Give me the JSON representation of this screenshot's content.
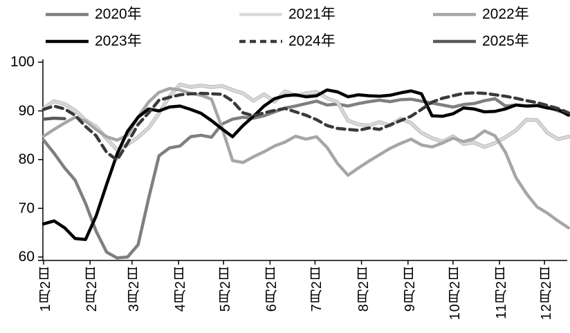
{
  "chart_data": {
    "type": "line",
    "title": "",
    "xlabel": "",
    "ylabel": "",
    "grid": false,
    "legend_position": "top",
    "y_ticks": [
      "100",
      "90",
      "80",
      "70",
      "60"
    ],
    "y_tick_values": [
      100,
      90,
      80,
      70,
      60
    ],
    "ylim": [
      60,
      100
    ],
    "x_ticks": [
      {
        "label": "1月2日",
        "day": 2
      },
      {
        "label": "2月2日",
        "day": 33
      },
      {
        "label": "3月2日",
        "day": 61
      },
      {
        "label": "4月2日",
        "day": 92
      },
      {
        "label": "5月2日",
        "day": 122
      },
      {
        "label": "6月2日",
        "day": 153
      },
      {
        "label": "7月2日",
        "day": 183
      },
      {
        "label": "8月2日",
        "day": 214
      },
      {
        "label": "9月2日",
        "day": 245
      },
      {
        "label": "10月2日",
        "day": 275
      },
      {
        "label": "11月2日",
        "day": 306
      },
      {
        "label": "12月2日",
        "day": 336
      }
    ],
    "x_days_weekly": [
      2,
      9,
      16,
      23,
      30,
      37,
      44,
      51,
      58,
      65,
      72,
      79,
      86,
      93,
      100,
      107,
      114,
      121,
      128,
      135,
      142,
      149,
      156,
      163,
      170,
      177,
      184,
      191,
      198,
      205,
      212,
      219,
      226,
      233,
      240,
      247,
      254,
      261,
      268,
      275,
      282,
      289,
      296,
      303,
      310,
      317,
      324,
      331,
      338,
      345,
      352
    ],
    "series": [
      {
        "name": "2020年",
        "color": "#7f7f7f",
        "dash": false,
        "values": [
          84.0,
          81.3,
          78.3,
          75.8,
          71.0,
          65.3,
          61.0,
          59.8,
          60.0,
          62.5,
          72.0,
          80.8,
          82.4,
          82.8,
          84.7,
          85.0,
          84.6,
          87.3,
          88.3,
          88.7,
          88.5,
          89.0,
          89.8,
          90.6,
          91.0,
          91.5,
          92.0,
          91.2,
          91.4,
          91.0,
          91.5,
          91.9,
          92.2,
          91.9,
          92.3,
          92.4,
          92.0,
          91.6,
          91.2,
          90.8,
          91.3,
          91.5,
          92.1,
          92.5,
          91.0,
          91.2,
          91.0,
          91.1,
          90.8,
          90.0,
          89.4
        ]
      },
      {
        "name": "2021年",
        "color": "#d9d9d9",
        "edge_color": "#bdbdbd",
        "dash": false,
        "values": [
          90.5,
          92.0,
          91.4,
          90.1,
          88.1,
          86.8,
          84.3,
          82.0,
          83.1,
          84.6,
          86.5,
          89.5,
          93.0,
          95.4,
          94.9,
          95.2,
          94.9,
          95.1,
          94.3,
          93.6,
          92.1,
          93.4,
          91.9,
          94.0,
          93.1,
          93.6,
          93.9,
          92.6,
          91.8,
          88.0,
          87.2,
          87.0,
          87.7,
          87.0,
          88.4,
          87.5,
          85.5,
          84.4,
          83.7,
          84.8,
          83.2,
          83.5,
          82.6,
          83.4,
          84.6,
          86.0,
          88.2,
          88.1,
          85.5,
          84.2,
          84.7
        ]
      },
      {
        "name": "2022年",
        "color": "#a6a6a6",
        "dash": false,
        "values": [
          84.8,
          86.2,
          87.5,
          88.7,
          87.9,
          86.2,
          84.7,
          84.0,
          85.0,
          88.7,
          91.8,
          93.8,
          94.6,
          94.3,
          93.6,
          93.2,
          92.4,
          86.5,
          79.8,
          79.4,
          80.6,
          81.6,
          82.8,
          83.6,
          84.8,
          84.2,
          84.7,
          82.5,
          79.2,
          76.8,
          78.3,
          79.7,
          81.0,
          82.3,
          83.3,
          84.2,
          83.0,
          82.6,
          83.4,
          84.4,
          83.7,
          84.3,
          85.9,
          84.9,
          81.5,
          76.3,
          73.0,
          70.3,
          69.0,
          67.4,
          66.0
        ]
      },
      {
        "name": "2023年",
        "color": "#000000",
        "dash": false,
        "values": [
          66.8,
          67.4,
          66.0,
          63.8,
          63.6,
          68.4,
          74.9,
          81.1,
          85.8,
          88.7,
          90.4,
          90.0,
          90.8,
          91.0,
          90.3,
          89.5,
          88.0,
          86.3,
          84.7,
          87.0,
          88.9,
          91.0,
          92.5,
          93.1,
          93.3,
          92.9,
          93.1,
          94.3,
          93.9,
          92.9,
          93.3,
          93.1,
          93.0,
          93.2,
          93.7,
          94.1,
          93.5,
          89.0,
          88.9,
          89.4,
          90.6,
          90.4,
          89.8,
          89.9,
          90.4,
          91.2,
          91.0,
          91.1,
          90.6,
          90.3,
          89.1
        ]
      },
      {
        "name": "2024年",
        "color": "#3a3a3a",
        "dash": true,
        "values": [
          90.3,
          91.0,
          90.4,
          89.1,
          86.8,
          84.9,
          81.5,
          79.9,
          83.4,
          87.2,
          89.6,
          92.2,
          92.8,
          93.3,
          93.5,
          93.6,
          93.5,
          93.4,
          92.0,
          89.6,
          89.0,
          89.6,
          90.1,
          90.5,
          89.8,
          89.1,
          88.2,
          87.0,
          86.4,
          86.2,
          86.0,
          86.5,
          86.2,
          87.1,
          88.0,
          88.9,
          90.3,
          91.8,
          92.6,
          93.1,
          93.6,
          93.7,
          93.6,
          93.3,
          93.0,
          92.6,
          92.1,
          91.7,
          91.1,
          90.5,
          89.6
        ]
      },
      {
        "name": "2025年",
        "color": "#595959",
        "dash": false,
        "values": [
          88.3,
          88.5,
          88.4
        ]
      }
    ]
  }
}
